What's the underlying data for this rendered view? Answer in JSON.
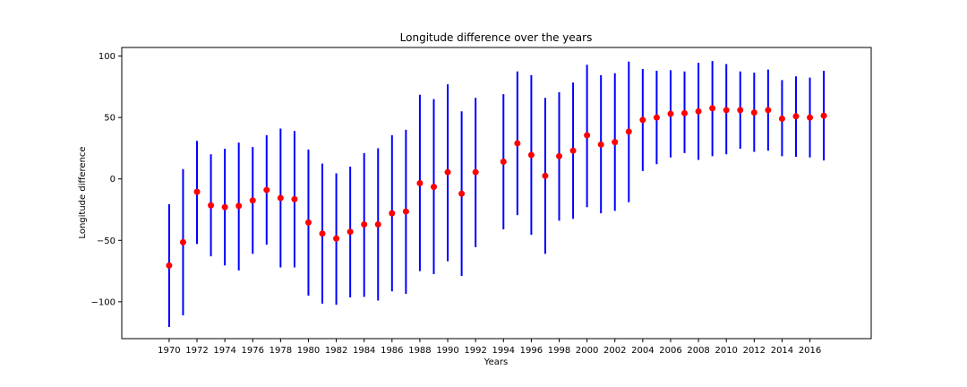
{
  "chart_data": {
    "type": "errorbar",
    "title": "Longitude difference over the years",
    "xlabel": "Years",
    "ylabel": "Longitude difference",
    "xlim": [
      1966.6,
      2020.4
    ],
    "ylim": [
      -130,
      107
    ],
    "xticks": [
      1970,
      1972,
      1974,
      1976,
      1978,
      1980,
      1982,
      1984,
      1986,
      1988,
      1990,
      1992,
      1994,
      1996,
      1998,
      2000,
      2002,
      2004,
      2006,
      2008,
      2010,
      2012,
      2014,
      2016
    ],
    "yticks": [
      -100,
      -50,
      0,
      50,
      100
    ],
    "ytick_labels": [
      "−100",
      "−50",
      "0",
      "50",
      "100"
    ],
    "grid": false,
    "marker_color": "#ff0000",
    "errorbar_color": "#0000ff",
    "points": [
      {
        "x": 1970,
        "y": -70.5,
        "low": -120.5,
        "high": -20.5
      },
      {
        "x": 1971,
        "y": -51.5,
        "low": -111,
        "high": 8
      },
      {
        "x": 1972,
        "y": -10.5,
        "low": -53,
        "high": 31
      },
      {
        "x": 1973,
        "y": -21.5,
        "low": -63,
        "high": 20
      },
      {
        "x": 1974,
        "y": -23,
        "low": -70.5,
        "high": 24.5
      },
      {
        "x": 1975,
        "y": -22,
        "low": -74.5,
        "high": 29.5
      },
      {
        "x": 1976,
        "y": -17.5,
        "low": -61,
        "high": 26
      },
      {
        "x": 1977,
        "y": -9,
        "low": -53.5,
        "high": 35.5
      },
      {
        "x": 1978,
        "y": -15.5,
        "low": -72,
        "high": 41
      },
      {
        "x": 1979,
        "y": -16.5,
        "low": -72,
        "high": 39
      },
      {
        "x": 1980,
        "y": -35.5,
        "low": -95,
        "high": 24
      },
      {
        "x": 1981,
        "y": -44.5,
        "low": -101.5,
        "high": 12.5
      },
      {
        "x": 1982,
        "y": -48.5,
        "low": -102.5,
        "high": 4.5
      },
      {
        "x": 1983,
        "y": -43,
        "low": -96.5,
        "high": 10
      },
      {
        "x": 1984,
        "y": -37,
        "low": -96,
        "high": 21
      },
      {
        "x": 1985,
        "y": -37,
        "low": -99,
        "high": 25
      },
      {
        "x": 1986,
        "y": -28,
        "low": -91.5,
        "high": 35.5
      },
      {
        "x": 1987,
        "y": -26.5,
        "low": -93.5,
        "high": 40
      },
      {
        "x": 1988,
        "y": -3.5,
        "low": -75,
        "high": 68.5
      },
      {
        "x": 1989,
        "y": -6.5,
        "low": -77.5,
        "high": 65
      },
      {
        "x": 1990,
        "y": 5.5,
        "low": -67,
        "high": 77
      },
      {
        "x": 1991,
        "y": -12,
        "low": -79,
        "high": 55
      },
      {
        "x": 1992,
        "y": 5.5,
        "low": -55.5,
        "high": 66
      },
      {
        "x": 1994,
        "y": 14,
        "low": -41,
        "high": 69
      },
      {
        "x": 1995,
        "y": 29,
        "low": -29.5,
        "high": 87.5
      },
      {
        "x": 1996,
        "y": 19.5,
        "low": -45.5,
        "high": 84.5
      },
      {
        "x": 1997,
        "y": 2.5,
        "low": -61,
        "high": 66
      },
      {
        "x": 1998,
        "y": 18.5,
        "low": -34,
        "high": 70.5
      },
      {
        "x": 1999,
        "y": 23,
        "low": -32.5,
        "high": 78.5
      },
      {
        "x": 2000,
        "y": 35.5,
        "low": -23,
        "high": 93
      },
      {
        "x": 2001,
        "y": 28,
        "low": -28,
        "high": 84.5
      },
      {
        "x": 2002,
        "y": 30,
        "low": -26,
        "high": 86
      },
      {
        "x": 2003,
        "y": 38.5,
        "low": -19,
        "high": 95.5
      },
      {
        "x": 2004,
        "y": 48,
        "low": 6.5,
        "high": 89.5
      },
      {
        "x": 2005,
        "y": 50,
        "low": 12,
        "high": 88
      },
      {
        "x": 2006,
        "y": 53,
        "low": 17.5,
        "high": 88.5
      },
      {
        "x": 2007,
        "y": 53.5,
        "low": 21,
        "high": 87.5
      },
      {
        "x": 2008,
        "y": 55,
        "low": 15.5,
        "high": 94.5
      },
      {
        "x": 2009,
        "y": 57.5,
        "low": 18.5,
        "high": 96
      },
      {
        "x": 2010,
        "y": 56,
        "low": 20,
        "high": 93.5
      },
      {
        "x": 2011,
        "y": 56,
        "low": 24.5,
        "high": 87.5
      },
      {
        "x": 2012,
        "y": 54,
        "low": 22,
        "high": 86.5
      },
      {
        "x": 2013,
        "y": 56,
        "low": 23,
        "high": 89
      },
      {
        "x": 2014,
        "y": 49,
        "low": 18.5,
        "high": 80.5
      },
      {
        "x": 2015,
        "y": 51,
        "low": 18,
        "high": 83.5
      },
      {
        "x": 2016,
        "y": 50,
        "low": 17.5,
        "high": 82.5
      },
      {
        "x": 2017,
        "y": 51.5,
        "low": 15,
        "high": 88
      }
    ]
  }
}
